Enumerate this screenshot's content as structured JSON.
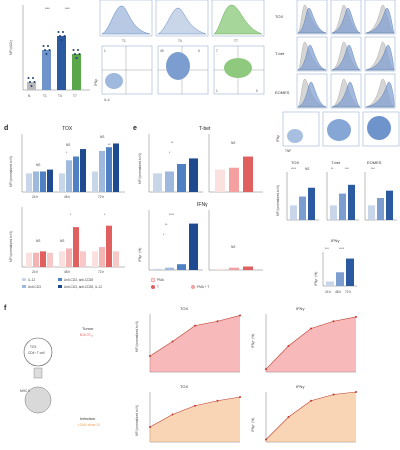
{
  "panel_letters": [
    "d",
    "e",
    "f"
  ],
  "top_left": {
    "ylabel": "MFI (x10³)",
    "sig_labels": [
      "***",
      "***"
    ],
    "group_labels": [
      "N",
      "T1",
      "T4",
      "T7"
    ]
  },
  "flow_top": {
    "col_labels": [
      "T1",
      "T4",
      "T7"
    ],
    "axis_x": "IL-4",
    "axis_y": "IFNγ",
    "quad_values": [
      "1",
      "49",
      "0",
      "7",
      "1",
      "0"
    ]
  },
  "right_hist": {
    "row_labels": [
      "TOX",
      "T-bet",
      "EOMES"
    ]
  },
  "right_density": {
    "axis_x": "TNF",
    "axis_y": "IFNγ"
  },
  "panel_d": {
    "title": "TOX",
    "ylabel_top": "MFI (normalized to N)",
    "ylabel_bottom": "MFI (normalized to N)",
    "time_labels": [
      "24 h",
      "48 h",
      "72 h"
    ],
    "sig": [
      "NS",
      "NS",
      "*",
      "NS",
      "**",
      "NS",
      "NS",
      "*",
      "*"
    ],
    "legend": [
      "IL-12",
      "Anti-CD3",
      "Anti-CD3, anti-CD28",
      "Anti-CD3, anti-CD28, IL-12"
    ]
  },
  "panel_e": {
    "title_top": "T-bet",
    "title_bottom": "IFNγ",
    "ylabel_top": "MFI (normalized to N)",
    "ylabel_bottom": "IFNγ⁺ (%)",
    "sig": [
      "**",
      "*",
      "NS",
      "****",
      "**",
      "*",
      "NS"
    ],
    "legend": [
      "PMA",
      "T",
      "PMA + T"
    ]
  },
  "right_bars": {
    "titles": [
      "TOX",
      "T-bet",
      "EOMES"
    ],
    "ylabel": "MFI (normalized to N)",
    "sig": [
      "****",
      "NS",
      "**",
      "***",
      "***"
    ],
    "time_labels": [
      "24 h",
      "48 h",
      "72 h"
    ],
    "ifng": {
      "title": "IFNγ",
      "ylabel": "IFNγ⁺ (%)",
      "sig": [
        "***",
        "****"
      ]
    }
  },
  "panel_f": {
    "schematic": {
      "cell_label": "TOX",
      "cell_sub": "CD4⁺ T cell",
      "mhc": "MHC II",
      "tumor_title": "Tumor",
      "tumor_sub": "B16 OT₁₄",
      "infection_title": "Infection",
      "infection_sub": "LCMV clone 13"
    },
    "charts": [
      {
        "title": "TOX",
        "ylabel": "MFI (normalized to N)",
        "color": "#f08080"
      },
      {
        "title": "IFNγ",
        "ylabel": "IFNγ⁺ (%)",
        "color": "#f08080"
      },
      {
        "title": "TOX",
        "ylabel": "MFI (normalized to N)",
        "color": "#f4b27a"
      },
      {
        "title": "IFNγ",
        "ylabel": "IFNγ⁺ (%)",
        "color": "#f4b27a"
      }
    ]
  },
  "chart_data": [
    {
      "type": "bar",
      "categories": [
        "N",
        "T1",
        "T4",
        "T7"
      ],
      "values": [
        0.4,
        2.0,
        2.7,
        1.8
      ],
      "ylim": [
        0,
        4
      ],
      "ylabel": "MFI (x10³)"
    },
    {
      "type": "bar",
      "title": "TOX",
      "categories": [
        "24 h",
        "48 h",
        "72 h"
      ],
      "series": [
        {
          "values": [
            1.0,
            1.0,
            1.1
          ]
        },
        {
          "values": [
            1.1,
            1.7,
            2.2
          ]
        },
        {
          "values": [
            1.1,
            1.9,
            2.4
          ]
        },
        {
          "values": [
            1.2,
            2.3,
            2.6
          ]
        }
      ],
      "ylim": [
        0,
        3
      ]
    },
    {
      "type": "bar",
      "categories": [
        "24 h",
        "48 h",
        "72 h"
      ],
      "series": [
        {
          "values": [
            1.0,
            1.1,
            1.1
          ]
        },
        {
          "values": [
            1.0,
            1.3,
            1.4
          ]
        },
        {
          "values": [
            1.1,
            2.8,
            2.9
          ]
        },
        {
          "values": [
            1.0,
            1.1,
            1.1
          ]
        }
      ],
      "ylim": [
        0,
        4
      ]
    },
    {
      "type": "bar",
      "title": "T-bet",
      "series": [
        {
          "values": [
            1.0,
            1.1,
            1.5,
            1.8
          ]
        },
        {
          "values": [
            1.2,
            1.3,
            1.9
          ]
        }
      ],
      "ylim": [
        0,
        3
      ]
    },
    {
      "type": "bar",
      "title": "IFNγ",
      "series": [
        {
          "values": [
            1,
            2,
            5,
            40
          ]
        },
        {
          "values": [
            1,
            2,
            3
          ]
        }
      ],
      "ylim": [
        0,
        50
      ]
    },
    {
      "type": "line",
      "title": "TOX",
      "x": [
        0,
        5,
        10,
        15,
        20
      ],
      "y": [
        1.1,
        2.1,
        3.2,
        3.5,
        3.9
      ],
      "xlim": [
        0,
        20
      ],
      "ylim": [
        0,
        4
      ]
    },
    {
      "type": "line",
      "title": "IFNγ",
      "x": [
        0,
        5,
        10,
        15,
        20
      ],
      "y": [
        2,
        18,
        30,
        35,
        38
      ],
      "xlim": [
        0,
        20
      ],
      "ylim": [
        0,
        40
      ]
    },
    {
      "type": "line",
      "title": "TOX",
      "x": [
        0,
        5,
        10,
        15,
        20
      ],
      "y": [
        1.2,
        2.2,
        2.9,
        3.3,
        3.6
      ],
      "xlim": [
        0,
        20
      ],
      "ylim": [
        0,
        4
      ]
    },
    {
      "type": "line",
      "title": "IFNγ",
      "x": [
        0,
        5,
        10,
        15,
        20
      ],
      "y": [
        2,
        20,
        33,
        38,
        40
      ],
      "xlim": [
        0,
        20
      ],
      "ylim": [
        0,
        40
      ]
    }
  ]
}
